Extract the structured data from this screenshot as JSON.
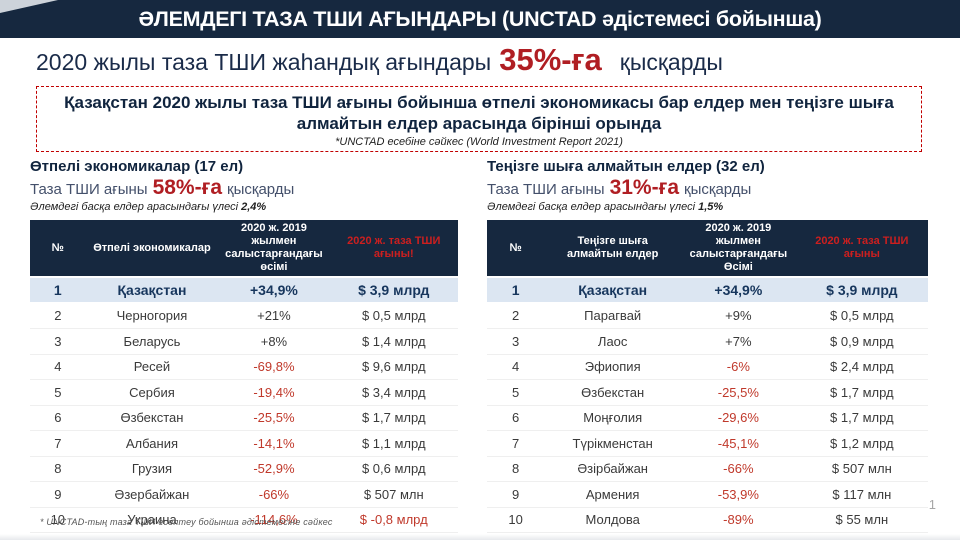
{
  "slide": {
    "title": "ӘЛЕМДЕГІ ТАЗА ТШИ АҒЫНДАРЫ (UNCTAD әдістемесі бойынша)",
    "subtitle": {
      "prefix": "2020 жылы таза ТШИ жаһандық ағындары",
      "highlight": "35%-ға",
      "suffix": "қысқарды"
    },
    "callout": {
      "text": "Қазақстан 2020 жылы таза ТШИ ағыны бойынша өтпелі экономикасы бар елдер мен теңізге шыға алмайтын елдер арасында бірінші орында",
      "source": "*UNCTAD есебіне сәйкес (World Investment Report 2021)"
    },
    "footnote": "* UNCTAD-тың  таза ТШИ есептеу бойынша  әдістемесіне сәйкес",
    "page_number": "1"
  },
  "colors": {
    "navy": "#16283F",
    "accent_red": "#B01E23",
    "header_red": "#CC1F1F",
    "negative_red": "#C0392B",
    "highlight_row": "#DCE6F2"
  },
  "panels": [
    {
      "heading": "Өтпелі экономикалар (17 ел)",
      "line_prefix": "Таза ТШИ ағыны",
      "line_highlight": "58%-ға",
      "line_suffix": "қысқарды",
      "share_note": "Әлемдегі басқа елдер арасындағы үлесі",
      "share_value": "2,4%",
      "table": {
        "headers": [
          "№",
          "Өтпелі экономикалар",
          "2020 ж. 2019 жылмен салыстарғандағы өсімі",
          "2020 ж. таза ТШИ ағыны!"
        ],
        "rows": [
          {
            "rank": "1",
            "country": "Қазақстан",
            "change": "+34,9%",
            "value": "$ 3,9 млрд"
          },
          {
            "rank": "2",
            "country": "Черногория",
            "change": "+21%",
            "value": "$ 0,5 млрд"
          },
          {
            "rank": "3",
            "country": "Беларусь",
            "change": "+8%",
            "value": "$ 1,4 млрд"
          },
          {
            "rank": "4",
            "country": "Ресей",
            "change": "-69,8%",
            "value": "$ 9,6 млрд"
          },
          {
            "rank": "5",
            "country": "Сербия",
            "change": "-19,4%",
            "value": "$ 3,4 млрд"
          },
          {
            "rank": "6",
            "country": "Өзбекстан",
            "change": "-25,5%",
            "value": "$ 1,7 млрд"
          },
          {
            "rank": "7",
            "country": "Албания",
            "change": "-14,1%",
            "value": "$ 1,1 млрд"
          },
          {
            "rank": "8",
            "country": "Грузия",
            "change": "-52,9%",
            "value": "$ 0,6 млрд"
          },
          {
            "rank": "9",
            "country": "Әзербайжан",
            "change": "-66%",
            "value": "$ 507  млн"
          },
          {
            "rank": "10",
            "country": "Украина",
            "change": "-114,6%",
            "value": "$ -0,8 млрд"
          }
        ]
      }
    },
    {
      "heading": "Теңізге шыға алмайтын елдер (32 ел)",
      "line_prefix": "Таза ТШИ ағыны",
      "line_highlight": "31%-ға",
      "line_suffix": "қысқарды",
      "share_note": "Әлемдегі басқа елдер арасындағы үлесі",
      "share_value": "1,5%",
      "table": {
        "headers": [
          "№",
          "Теңізге шыға алмайтын елдер",
          "2020 ж. 2019 жылмен салыстарғандағы Өсімі",
          "2020 ж. таза ТШИ ағыны"
        ],
        "rows": [
          {
            "rank": "1",
            "country": "Қазақстан",
            "change": "+34,9%",
            "value": "$ 3,9 млрд"
          },
          {
            "rank": "2",
            "country": "Парагвай",
            "change": "+9%",
            "value": "$ 0,5 млрд"
          },
          {
            "rank": "3",
            "country": "Лаос",
            "change": "+7%",
            "value": "$ 0,9 млрд"
          },
          {
            "rank": "4",
            "country": "Эфиопия",
            "change": "-6%",
            "value": "$ 2,4 млрд"
          },
          {
            "rank": "5",
            "country": "Өзбекстан",
            "change": "-25,5%",
            "value": "$ 1,7 млрд"
          },
          {
            "rank": "6",
            "country": "Моңғолия",
            "change": "-29,6%",
            "value": "$ 1,7 млрд"
          },
          {
            "rank": "7",
            "country": "Түрікменстан",
            "change": "-45,1%",
            "value": "$ 1,2 млрд"
          },
          {
            "rank": "8",
            "country": "Әзірбайжан",
            "change": "-66%",
            "value": "$ 507  млн"
          },
          {
            "rank": "9",
            "country": "Армения",
            "change": "-53,9%",
            "value": "$ 117  млн"
          },
          {
            "rank": "10",
            "country": "Молдова",
            "change": "-89%",
            "value": "$ 55  млн"
          }
        ]
      }
    }
  ]
}
